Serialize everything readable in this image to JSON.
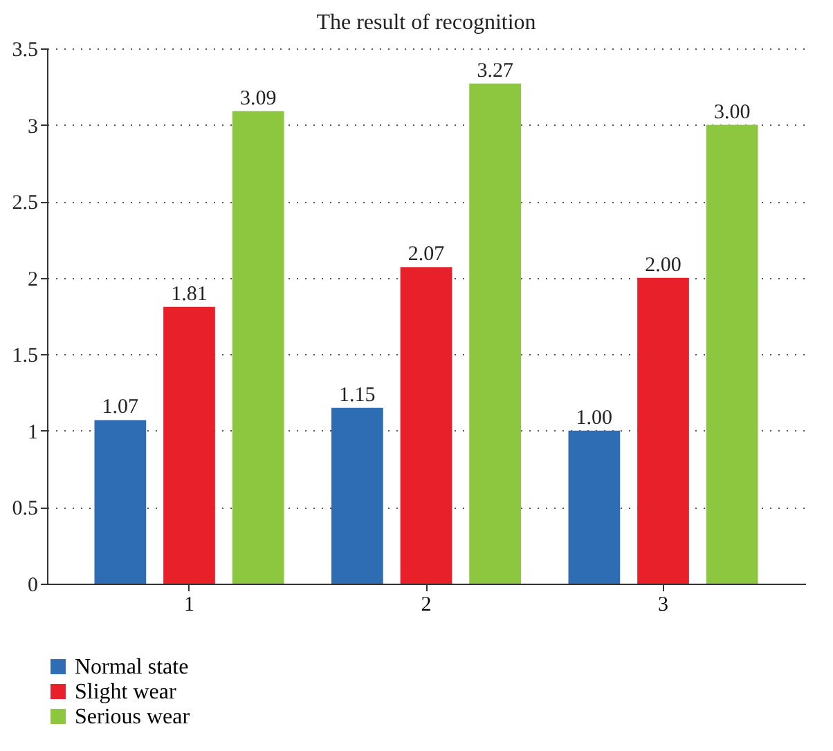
{
  "chart_data": {
    "type": "bar",
    "title": "The result of recognition",
    "categories": [
      "1",
      "2",
      "3"
    ],
    "series": [
      {
        "name": "Normal state",
        "color": "#2e6db4",
        "values": [
          1.07,
          1.15,
          1.0
        ],
        "value_labels": [
          "1.07",
          "1.15",
          "1.00"
        ]
      },
      {
        "name": "Slight wear",
        "color": "#e8202a",
        "values": [
          1.81,
          2.07,
          2.0
        ],
        "value_labels": [
          "1.81",
          "2.07",
          "2.00"
        ]
      },
      {
        "name": "Serious wear",
        "color": "#8dc63f",
        "values": [
          3.09,
          3.27,
          3.0
        ],
        "value_labels": [
          "3.09",
          "3.27",
          "3.00"
        ]
      }
    ],
    "ylim": [
      0,
      3.5
    ],
    "yticks": [
      0,
      0.5,
      1,
      1.5,
      2,
      2.5,
      3,
      3.5
    ],
    "grid": "y",
    "legend": "bottom"
  }
}
